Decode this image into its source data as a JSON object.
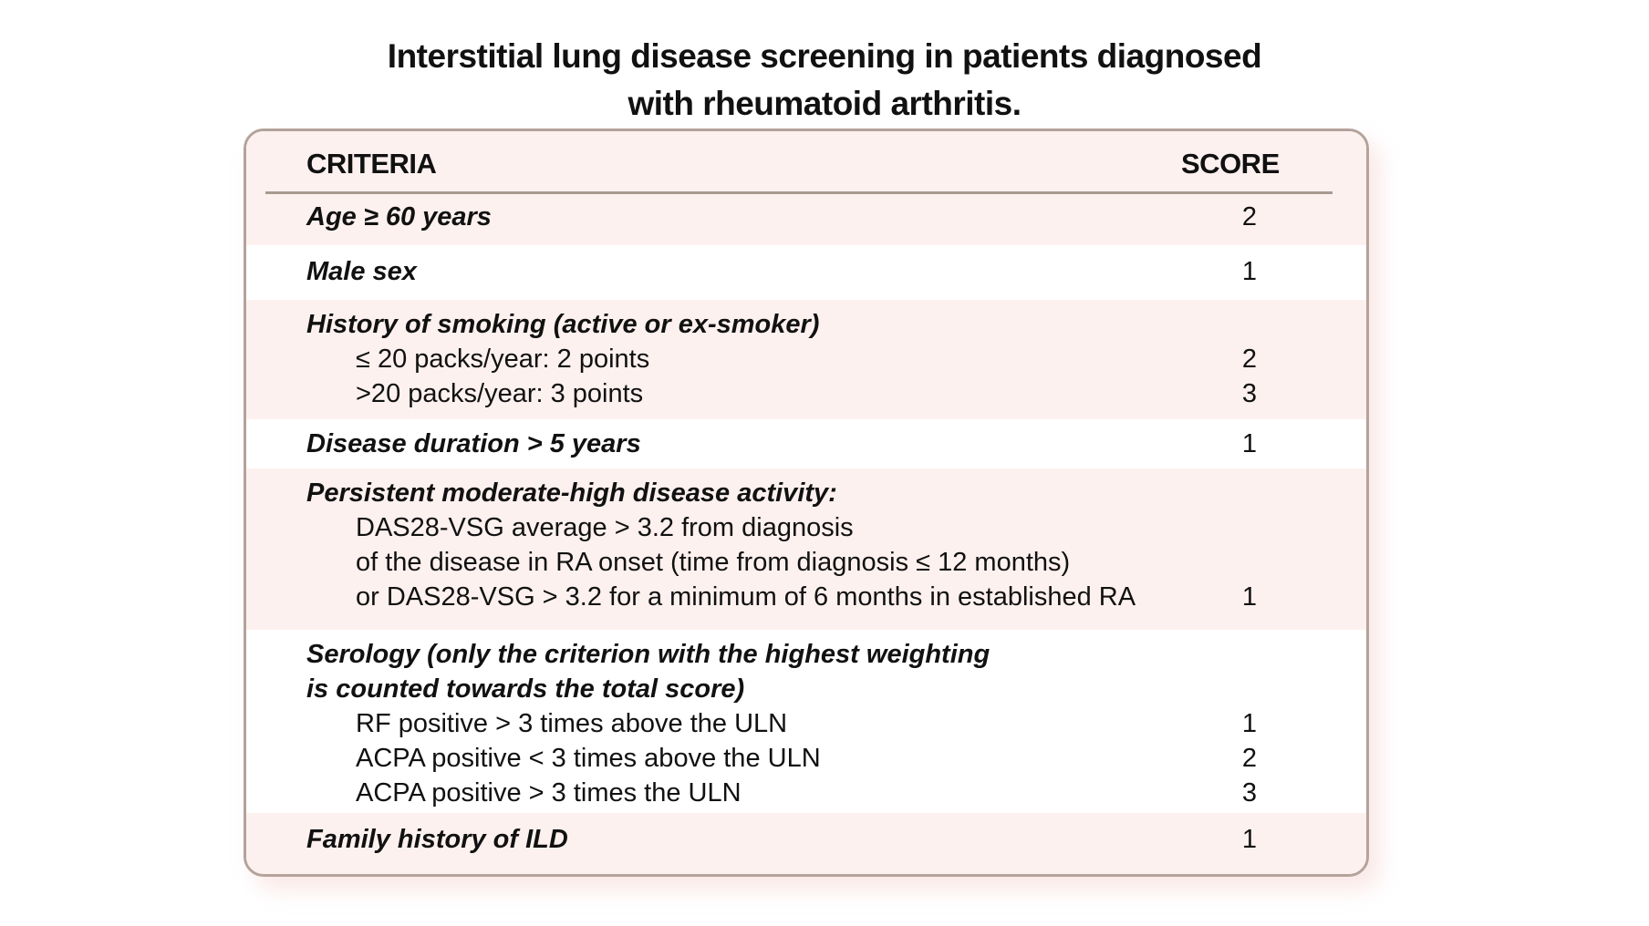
{
  "title": [
    "Interstitial lung disease screening in patients diagnosed",
    "with rheumatoid arthritis."
  ],
  "header": {
    "criteria": "CRITERIA",
    "score": "SCORE"
  },
  "rows": [
    {
      "criterion": "Age ≥ 60 years",
      "score": "2"
    },
    {
      "criterion": "Male sex",
      "score": "1"
    },
    {
      "criterion": "History of smoking (active or ex-smoker)",
      "sub": [
        {
          "text": "≤ 20 packs/year: 2 points",
          "score": "2"
        },
        {
          "text": ">20 packs/year: 3 points",
          "score": "3"
        }
      ]
    },
    {
      "criterion": "Disease duration > 5 years",
      "score": "1"
    },
    {
      "criterion": "Persistent moderate-high disease activity:",
      "sub": [
        {
          "text": "DAS28-VSG average > 3.2 from diagnosis"
        },
        {
          "text": "of the disease in RA onset (time from diagnosis ≤ 12 months)"
        },
        {
          "text": "or DAS28-VSG > 3.2 for a minimum of 6 months in established RA",
          "score": "1"
        }
      ]
    },
    {
      "criterion": [
        "Serology (only the criterion with the highest weighting",
        "is counted towards the total score)"
      ],
      "sub": [
        {
          "text": "RF positive > 3 times above the ULN",
          "score": "1"
        },
        {
          "text": "ACPA positive < 3 times above the ULN",
          "score": "2"
        },
        {
          "text": "ACPA positive > 3 times the ULN",
          "score": "3"
        }
      ]
    },
    {
      "criterion": "Family history of ILD",
      "score": "1"
    }
  ],
  "colors": {
    "row_tint": "#fdf1ef",
    "border": "#b3a39b"
  }
}
